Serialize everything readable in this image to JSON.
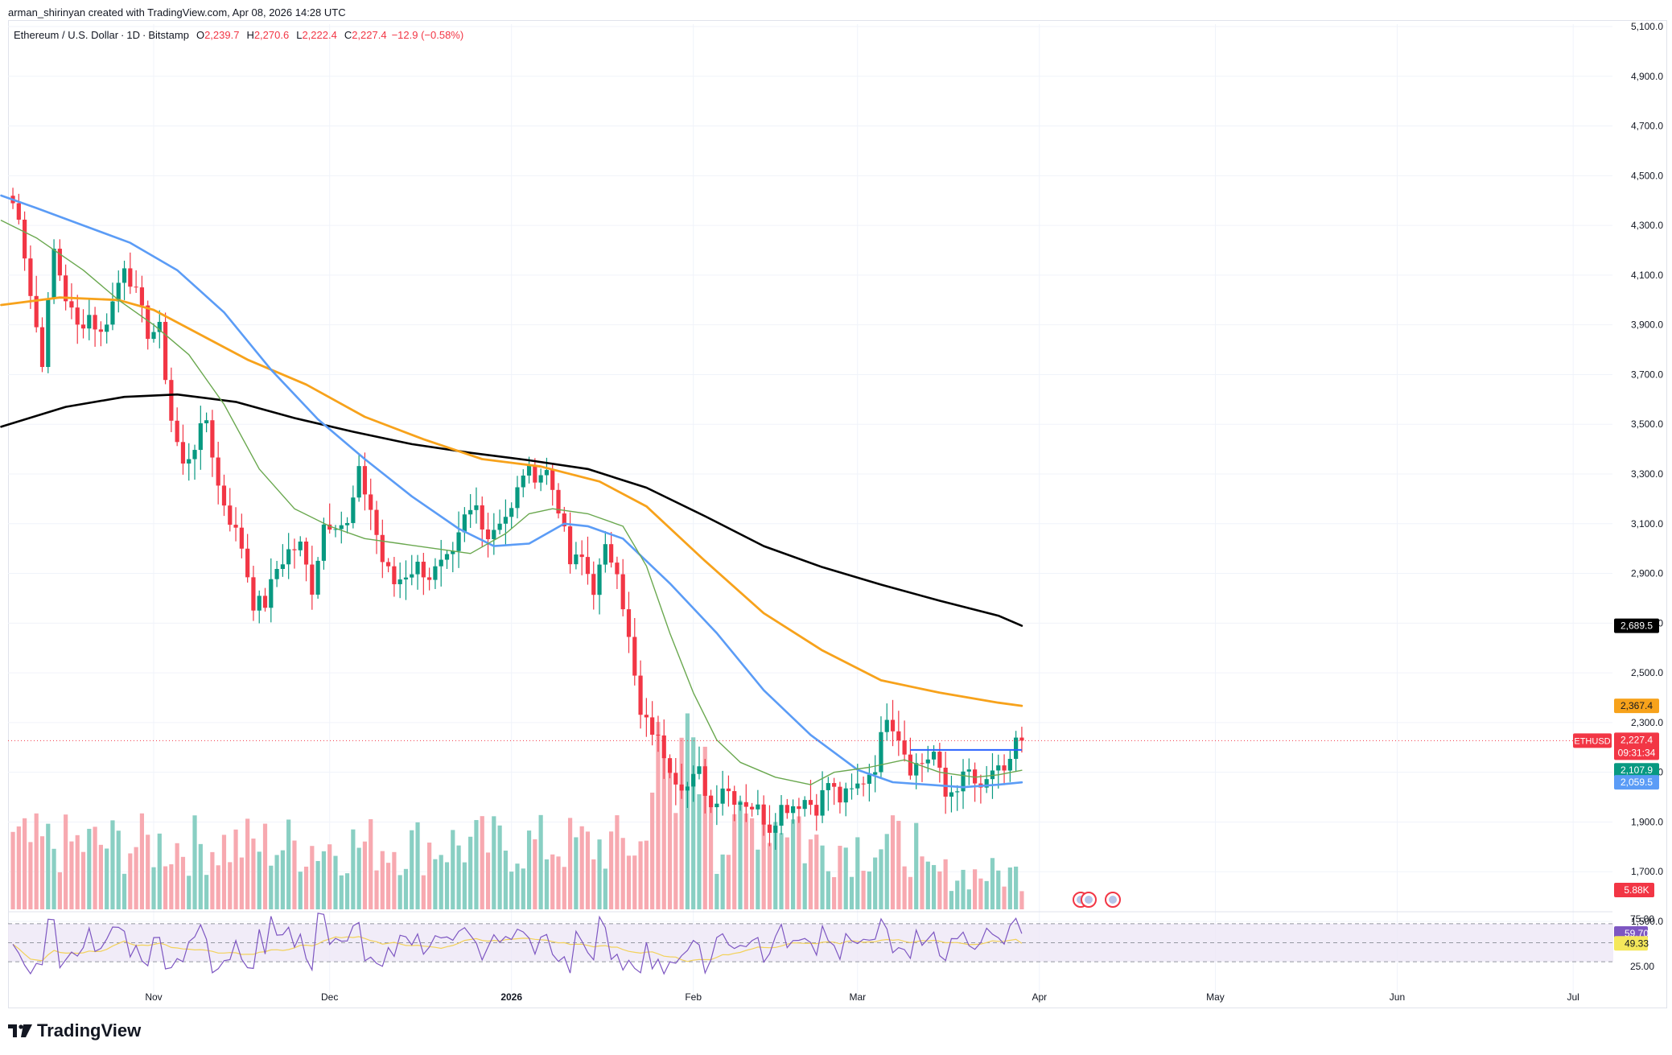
{
  "header": {
    "credit": "arman_shirinyan created with TradingView.com, Apr 08, 2026 14:28 UTC"
  },
  "legend": {
    "symbol": "Ethereum / U.S. Dollar",
    "interval": "1D",
    "exchange": "Bitstamp",
    "open_label": "O",
    "open": "2,239.7",
    "high_label": "H",
    "high": "2,270.6",
    "low_label": "L",
    "low": "2,222.4",
    "close_label": "C",
    "close": "2,227.4",
    "change": "−12.9 (−0.58%)"
  },
  "footer": {
    "brand": "TradingView"
  },
  "colors": {
    "up": "#089981",
    "down": "#f23645",
    "vol_up": "#89cfc3",
    "vol_down": "#f7a9b0",
    "ma_black": "#000000",
    "ma_orange": "#f7a21b",
    "ma_blue": "#5b9cf6",
    "ma_green": "#6aa84f",
    "rsi_line": "#7e57c2",
    "rsi_ma": "#f2d15a",
    "rsi_band": "#ede7f6"
  },
  "chart_data": {
    "type": "candlestick",
    "symbol_tag": "ETHUSD",
    "price_axis": {
      "ticks": [
        "5,100.0",
        "4,900.0",
        "4,700.0",
        "4,500.0",
        "4,300.0",
        "4,100.0",
        "3,900.0",
        "3,700.0",
        "3,500.0",
        "3,300.0",
        "3,100.0",
        "2,900.0",
        "2,700.0",
        "2,500.0",
        "2,300.0",
        "2,100.0",
        "1,900.0",
        "1,700.0",
        "1,500.0"
      ],
      "range": [
        1500,
        5100
      ]
    },
    "time_axis": {
      "labels": [
        "Nov",
        "Dec",
        "2026",
        "Feb",
        "Mar",
        "Apr",
        "May",
        "Jun",
        "Jul"
      ],
      "label_day_index": [
        0,
        30,
        61,
        92,
        120,
        151,
        181,
        212,
        242
      ]
    },
    "price_tags": [
      {
        "label": "2,689.5",
        "value": 2689.5,
        "bg": "#000000",
        "fg": "#ffffff"
      },
      {
        "label": "2,367.4",
        "value": 2367.4,
        "bg": "#f7a21b",
        "fg": "#131722"
      },
      {
        "label": "2,227.4",
        "value": 2227.4,
        "bg": "#f23645",
        "fg": "#ffffff",
        "sub": "09:31:34"
      },
      {
        "label": "2,107.9",
        "value": 2107.9,
        "bg": "#089981",
        "fg": "#ffffff"
      },
      {
        "label": "2,059.5",
        "value": 2059.5,
        "bg": "#5b9cf6",
        "fg": "#ffffff"
      }
    ],
    "volume_tag": {
      "label": "5.88K",
      "bg": "#f23645",
      "fg": "#ffffff"
    },
    "rsi": {
      "ticks": [
        "75.00",
        "25.00"
      ],
      "range": [
        0,
        100
      ],
      "upper": 70,
      "middle": 50,
      "lower": 30,
      "value_label": "59.70",
      "ma_label": "49.33"
    },
    "close_anchors": [
      [
        -25,
        4420
      ],
      [
        -23,
        4350
      ],
      [
        -21,
        4020
      ],
      [
        -19,
        3760
      ],
      [
        -17,
        4200
      ],
      [
        -15,
        4010
      ],
      [
        -13,
        3890
      ],
      [
        -11,
        3940
      ],
      [
        -9,
        3860
      ],
      [
        -7,
        3990
      ],
      [
        -5,
        4150
      ],
      [
        -3,
        4020
      ],
      [
        -1,
        3870
      ],
      [
        1,
        3880
      ],
      [
        3,
        3520
      ],
      [
        5,
        3330
      ],
      [
        7,
        3420
      ],
      [
        9,
        3520
      ],
      [
        11,
        3250
      ],
      [
        13,
        3120
      ],
      [
        15,
        3010
      ],
      [
        17,
        2780
      ],
      [
        19,
        2780
      ],
      [
        21,
        2920
      ],
      [
        23,
        2990
      ],
      [
        25,
        3010
      ],
      [
        27,
        2840
      ],
      [
        29,
        3100
      ],
      [
        31,
        3110
      ],
      [
        33,
        3090
      ],
      [
        35,
        3300
      ],
      [
        37,
        3160
      ],
      [
        39,
        2950
      ],
      [
        41,
        2860
      ],
      [
        43,
        2900
      ],
      [
        45,
        2930
      ],
      [
        47,
        2890
      ],
      [
        49,
        2930
      ],
      [
        51,
        2960
      ],
      [
        53,
        3120
      ],
      [
        55,
        3170
      ],
      [
        57,
        3050
      ],
      [
        59,
        3120
      ],
      [
        61,
        3150
      ],
      [
        63,
        3310
      ],
      [
        65,
        3300
      ],
      [
        67,
        3310
      ],
      [
        69,
        3170
      ],
      [
        71,
        2940
      ],
      [
        73,
        2960
      ],
      [
        75,
        2840
      ],
      [
        77,
        2990
      ],
      [
        79,
        2930
      ],
      [
        81,
        2630
      ],
      [
        83,
        2320
      ],
      [
        85,
        2270
      ],
      [
        87,
        2180
      ],
      [
        89,
        2080
      ],
      [
        91,
        2040
      ],
      [
        93,
        2100
      ],
      [
        95,
        1960
      ],
      [
        97,
        2050
      ],
      [
        99,
        2000
      ],
      [
        101,
        1980
      ],
      [
        103,
        1950
      ],
      [
        105,
        1880
      ],
      [
        107,
        1960
      ],
      [
        109,
        1970
      ],
      [
        111,
        1990
      ],
      [
        113,
        1960
      ],
      [
        115,
        2060
      ],
      [
        117,
        1990
      ],
      [
        119,
        2020
      ],
      [
        121,
        2070
      ],
      [
        123,
        2130
      ],
      [
        125,
        2340
      ],
      [
        127,
        2250
      ],
      [
        129,
        2120
      ],
      [
        131,
        2140
      ],
      [
        133,
        2180
      ],
      [
        135,
        2000
      ],
      [
        137,
        2050
      ],
      [
        139,
        2100
      ],
      [
        141,
        2010
      ],
      [
        143,
        2110
      ],
      [
        145,
        2080
      ],
      [
        147,
        2239.7
      ],
      [
        148,
        2227.4
      ]
    ],
    "moving_averages": [
      {
        "name": "200",
        "color": "#000000",
        "width": 2.6,
        "points": [
          [
            -26,
            3490
          ],
          [
            -15,
            3570
          ],
          [
            -5,
            3610
          ],
          [
            4,
            3620
          ],
          [
            14,
            3590
          ],
          [
            24,
            3525
          ],
          [
            34,
            3470
          ],
          [
            44,
            3420
          ],
          [
            54,
            3385
          ],
          [
            64,
            3355
          ],
          [
            74,
            3320
          ],
          [
            84,
            3245
          ],
          [
            94,
            3130
          ],
          [
            104,
            3010
          ],
          [
            114,
            2925
          ],
          [
            124,
            2855
          ],
          [
            134,
            2790
          ],
          [
            144,
            2730
          ],
          [
            148,
            2689.5
          ]
        ]
      },
      {
        "name": "100",
        "color": "#f7a21b",
        "width": 2.8,
        "points": [
          [
            -26,
            3980
          ],
          [
            -16,
            4010
          ],
          [
            -6,
            4000
          ],
          [
            0,
            3960
          ],
          [
            8,
            3860
          ],
          [
            16,
            3760
          ],
          [
            26,
            3660
          ],
          [
            36,
            3530
          ],
          [
            46,
            3440
          ],
          [
            56,
            3360
          ],
          [
            66,
            3330
          ],
          [
            76,
            3270
          ],
          [
            84,
            3170
          ],
          [
            94,
            2950
          ],
          [
            104,
            2740
          ],
          [
            114,
            2590
          ],
          [
            124,
            2470
          ],
          [
            134,
            2420
          ],
          [
            144,
            2380
          ],
          [
            148,
            2367.4
          ]
        ]
      },
      {
        "name": "50",
        "color": "#5b9cf6",
        "width": 2.6,
        "points": [
          [
            -26,
            4420
          ],
          [
            -20,
            4370
          ],
          [
            -12,
            4300
          ],
          [
            -4,
            4230
          ],
          [
            4,
            4120
          ],
          [
            12,
            3950
          ],
          [
            20,
            3720
          ],
          [
            28,
            3520
          ],
          [
            36,
            3360
          ],
          [
            44,
            3210
          ],
          [
            52,
            3080
          ],
          [
            58,
            3010
          ],
          [
            64,
            3020
          ],
          [
            70,
            3100
          ],
          [
            74,
            3090
          ],
          [
            80,
            3040
          ],
          [
            88,
            2860
          ],
          [
            96,
            2660
          ],
          [
            104,
            2430
          ],
          [
            112,
            2250
          ],
          [
            120,
            2110
          ],
          [
            126,
            2060
          ],
          [
            132,
            2050
          ],
          [
            138,
            2040
          ],
          [
            144,
            2050
          ],
          [
            148,
            2059.5
          ]
        ]
      },
      {
        "name": "20",
        "color": "#6aa84f",
        "width": 1.4,
        "points": [
          [
            -26,
            4320
          ],
          [
            -20,
            4250
          ],
          [
            -12,
            4120
          ],
          [
            -6,
            4000
          ],
          [
            0,
            3900
          ],
          [
            6,
            3780
          ],
          [
            12,
            3580
          ],
          [
            18,
            3320
          ],
          [
            24,
            3160
          ],
          [
            30,
            3090
          ],
          [
            36,
            3040
          ],
          [
            42,
            3020
          ],
          [
            48,
            3000
          ],
          [
            54,
            2980
          ],
          [
            60,
            3060
          ],
          [
            64,
            3140
          ],
          [
            68,
            3160
          ],
          [
            74,
            3140
          ],
          [
            80,
            3090
          ],
          [
            84,
            2930
          ],
          [
            88,
            2660
          ],
          [
            92,
            2420
          ],
          [
            96,
            2230
          ],
          [
            100,
            2140
          ],
          [
            106,
            2080
          ],
          [
            112,
            2050
          ],
          [
            116,
            2100
          ],
          [
            122,
            2120
          ],
          [
            128,
            2150
          ],
          [
            134,
            2100
          ],
          [
            140,
            2080
          ],
          [
            144,
            2090
          ],
          [
            148,
            2107.9
          ]
        ]
      }
    ],
    "horizontal_line": {
      "from_day": 129,
      "to_day": 148,
      "value": 2190,
      "color": "#2962ff"
    }
  }
}
